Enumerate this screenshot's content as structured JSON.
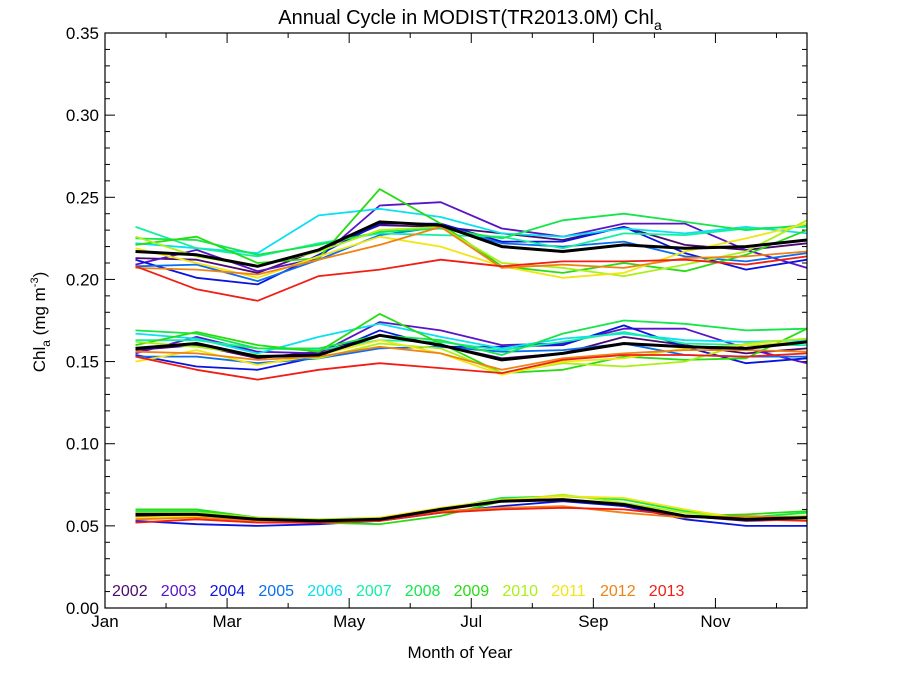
{
  "chart_data": {
    "type": "line",
    "title_main": "Annual Cycle in MODIST(TR2013.0M) Chl",
    "title_sub": "a",
    "xlabel": "Month of Year",
    "ylabel_main": "Chl",
    "ylabel_sub": "a",
    "ylabel_units_pre": " (mg m",
    "ylabel_units_sup": "-3",
    "ylabel_units_post": ")",
    "xlim": [
      1,
      12.5
    ],
    "ylim": [
      0,
      0.35
    ],
    "x_ticks": [
      {
        "value": 1,
        "label": "Jan"
      },
      {
        "value": 3,
        "label": "Mar"
      },
      {
        "value": 5,
        "label": "May"
      },
      {
        "value": 7,
        "label": "Jul"
      },
      {
        "value": 9,
        "label": "Sep"
      },
      {
        "value": 11,
        "label": "Nov"
      }
    ],
    "y_ticks": [
      {
        "value": 0.0,
        "label": "0.00"
      },
      {
        "value": 0.05,
        "label": "0.05"
      },
      {
        "value": 0.1,
        "label": "0.10"
      },
      {
        "value": 0.15,
        "label": "0.15"
      },
      {
        "value": 0.2,
        "label": "0.20"
      },
      {
        "value": 0.25,
        "label": "0.25"
      },
      {
        "value": 0.3,
        "label": "0.30"
      },
      {
        "value": 0.35,
        "label": "0.35"
      }
    ],
    "legend_placement": "bottom-left inside plot",
    "x": [
      1.5,
      2.5,
      3.5,
      4.5,
      5.5,
      6.5,
      7.5,
      8.5,
      9.5,
      10.5,
      11.5,
      12.5
    ],
    "series": [
      {
        "name": "2002",
        "color": "#4b0a6e",
        "groups": [
          [
            0.213,
            0.212,
            0.204,
            0.218,
            0.233,
            0.232,
            0.228,
            0.224,
            0.232,
            0.221,
            0.218,
            0.222
          ],
          [
            0.157,
            0.16,
            0.152,
            0.156,
            0.166,
            0.16,
            0.152,
            0.155,
            0.165,
            0.16,
            0.155,
            0.158
          ],
          [
            0.056,
            0.056,
            0.054,
            0.053,
            0.054,
            0.06,
            0.066,
            0.066,
            0.062,
            0.056,
            0.053,
            0.054
          ]
        ]
      },
      {
        "name": "2003",
        "color": "#5a14c8",
        "groups": [
          [
            0.209,
            0.218,
            0.205,
            0.213,
            0.245,
            0.247,
            0.231,
            0.226,
            0.234,
            0.234,
            0.218,
            0.207
          ],
          [
            0.155,
            0.165,
            0.156,
            0.155,
            0.174,
            0.169,
            0.16,
            0.161,
            0.17,
            0.17,
            0.158,
            0.149
          ]
        ]
      },
      {
        "name": "2004",
        "color": "#0a14dc",
        "groups": [
          [
            0.212,
            0.201,
            0.197,
            0.215,
            0.234,
            0.234,
            0.223,
            0.223,
            0.232,
            0.216,
            0.206,
            0.212
          ],
          [
            0.154,
            0.147,
            0.145,
            0.153,
            0.169,
            0.159,
            0.159,
            0.16,
            0.172,
            0.159,
            0.149,
            0.152
          ],
          [
            0.053,
            0.051,
            0.05,
            0.051,
            0.053,
            0.058,
            0.062,
            0.065,
            0.062,
            0.054,
            0.05,
            0.05
          ]
        ]
      },
      {
        "name": "2005",
        "color": "#0a6ef0",
        "groups": [
          [
            0.208,
            0.209,
            0.199,
            0.212,
            0.227,
            0.232,
            0.222,
            0.22,
            0.223,
            0.214,
            0.211,
            0.216
          ],
          [
            0.153,
            0.153,
            0.149,
            0.152,
            0.158,
            0.159,
            0.156,
            0.157,
            0.161,
            0.154,
            0.153,
            0.153
          ]
        ]
      },
      {
        "name": "2006",
        "color": "#0ae0f0",
        "groups": [
          [
            0.222,
            0.219,
            0.216,
            0.239,
            0.243,
            0.238,
            0.228,
            0.226,
            0.231,
            0.228,
            0.232,
            0.228
          ],
          [
            0.167,
            0.164,
            0.155,
            0.165,
            0.173,
            0.165,
            0.158,
            0.164,
            0.167,
            0.163,
            0.162,
            0.163
          ]
        ]
      },
      {
        "name": "2007",
        "color": "#14f0a0",
        "groups": [
          [
            0.232,
            0.219,
            0.214,
            0.222,
            0.228,
            0.227,
            0.226,
            0.219,
            0.228,
            0.227,
            0.231,
            0.232
          ],
          [
            0.163,
            0.163,
            0.158,
            0.157,
            0.163,
            0.162,
            0.157,
            0.162,
            0.168,
            0.161,
            0.16,
            0.16
          ]
        ]
      },
      {
        "name": "2008",
        "color": "#14e64b",
        "groups": [
          [
            0.225,
            0.224,
            0.215,
            0.221,
            0.229,
            0.231,
            0.225,
            0.236,
            0.24,
            0.235,
            0.23,
            0.233
          ],
          [
            0.169,
            0.167,
            0.158,
            0.158,
            0.166,
            0.163,
            0.154,
            0.167,
            0.175,
            0.173,
            0.169,
            0.17
          ],
          [
            0.059,
            0.059,
            0.055,
            0.053,
            0.054,
            0.06,
            0.067,
            0.068,
            0.066,
            0.059,
            0.055,
            0.058
          ]
        ]
      },
      {
        "name": "2009",
        "color": "#28dc14",
        "groups": [
          [
            0.221,
            0.226,
            0.21,
            0.213,
            0.255,
            0.234,
            0.208,
            0.204,
            0.21,
            0.205,
            0.215,
            0.23
          ],
          [
            0.16,
            0.168,
            0.16,
            0.156,
            0.179,
            0.161,
            0.143,
            0.145,
            0.153,
            0.151,
            0.152,
            0.17
          ],
          [
            0.06,
            0.06,
            0.055,
            0.052,
            0.051,
            0.056,
            0.065,
            0.066,
            0.063,
            0.056,
            0.057,
            0.059
          ]
        ]
      },
      {
        "name": "2010",
        "color": "#aaf014",
        "groups": [
          [
            0.226,
            0.214,
            0.208,
            0.217,
            0.23,
            0.232,
            0.21,
            0.207,
            0.202,
            0.209,
            0.217,
            0.236
          ],
          [
            0.162,
            0.159,
            0.154,
            0.152,
            0.161,
            0.158,
            0.143,
            0.149,
            0.147,
            0.15,
            0.161,
            0.164
          ],
          [
            0.058,
            0.058,
            0.055,
            0.054,
            0.055,
            0.06,
            0.065,
            0.069,
            0.064,
            0.058,
            0.055,
            0.056
          ]
        ]
      },
      {
        "name": "2011",
        "color": "#f0e614",
        "groups": [
          [
            0.219,
            0.21,
            0.201,
            0.214,
            0.226,
            0.22,
            0.208,
            0.201,
            0.204,
            0.217,
            0.225,
            0.234
          ],
          [
            0.15,
            0.157,
            0.148,
            0.154,
            0.163,
            0.155,
            0.142,
            0.15,
            0.152,
            0.158,
            0.16,
            0.162
          ],
          [
            0.055,
            0.056,
            0.054,
            0.053,
            0.055,
            0.061,
            0.066,
            0.068,
            0.067,
            0.06,
            0.054,
            0.054
          ]
        ]
      },
      {
        "name": "2012",
        "color": "#f08214",
        "groups": [
          [
            0.207,
            0.206,
            0.203,
            0.212,
            0.221,
            0.232,
            0.207,
            0.209,
            0.207,
            0.213,
            0.214,
            0.217
          ],
          [
            0.156,
            0.155,
            0.151,
            0.153,
            0.159,
            0.155,
            0.145,
            0.152,
            0.155,
            0.157,
            0.157,
            0.156
          ],
          [
            0.054,
            0.055,
            0.053,
            0.052,
            0.053,
            0.059,
            0.061,
            0.062,
            0.058,
            0.055,
            0.056,
            0.055
          ]
        ]
      },
      {
        "name": "2013",
        "color": "#f01e14",
        "groups": [
          [
            0.208,
            0.194,
            0.187,
            0.202,
            0.206,
            0.212,
            0.208,
            0.211,
            0.211,
            0.212,
            0.209,
            0.214
          ],
          [
            0.153,
            0.145,
            0.139,
            0.145,
            0.149,
            0.146,
            0.143,
            0.151,
            0.154,
            0.154,
            0.153,
            0.155
          ],
          [
            0.052,
            0.054,
            0.052,
            0.052,
            0.053,
            0.058,
            0.06,
            0.061,
            0.06,
            0.056,
            0.054,
            0.053
          ]
        ]
      }
    ],
    "mean": {
      "color": "#000000",
      "groups": [
        [
          0.217,
          0.215,
          0.208,
          0.218,
          0.235,
          0.233,
          0.22,
          0.217,
          0.221,
          0.219,
          0.22,
          0.224
        ],
        [
          0.158,
          0.161,
          0.153,
          0.154,
          0.166,
          0.16,
          0.151,
          0.155,
          0.161,
          0.159,
          0.158,
          0.162
        ],
        [
          0.057,
          0.057,
          0.054,
          0.053,
          0.054,
          0.06,
          0.065,
          0.066,
          0.063,
          0.056,
          0.054,
          0.055
        ]
      ]
    }
  }
}
